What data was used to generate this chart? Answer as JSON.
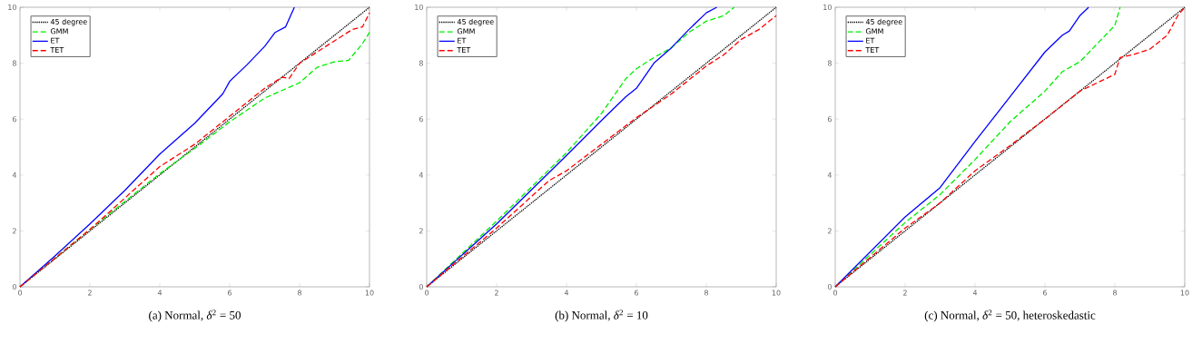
{
  "chart_data": [
    {
      "type": "line",
      "title": "(a) Normal, *δ*$^{2}$ = 50",
      "legend": "top left",
      "xlim": [
        0,
        10
      ],
      "ylim": [
        0,
        10
      ],
      "xticks": [
        0,
        2,
        4,
        6,
        8,
        10
      ],
      "yticks": [
        0,
        2,
        4,
        6,
        8,
        10
      ],
      "series": [
        {
          "name": "45 degree",
          "color": "#000000",
          "line_style": "dotted",
          "x": [
            0,
            10
          ],
          "values": [
            0,
            10
          ]
        },
        {
          "name": "GMM",
          "color": "#00ee00",
          "line_style": "dashed",
          "x": [
            0,
            2,
            4,
            5,
            6,
            7,
            8,
            8.5,
            9,
            9.4,
            9.8,
            10
          ],
          "values": [
            0,
            2.05,
            4.05,
            4.95,
            5.9,
            6.75,
            7.3,
            7.85,
            8.05,
            8.1,
            8.7,
            9.1
          ]
        },
        {
          "name": "ET",
          "color": "#0000ff",
          "line_style": "solid",
          "x": [
            0,
            1,
            2,
            3,
            4,
            5,
            5.8,
            6,
            6.5,
            7,
            7.3,
            7.6,
            7.85
          ],
          "values": [
            0,
            1.1,
            2.25,
            3.45,
            4.75,
            5.85,
            6.9,
            7.35,
            7.95,
            8.6,
            9.1,
            9.3,
            10
          ]
        },
        {
          "name": "TET",
          "color": "#ff0000",
          "line_style": "dashed",
          "x": [
            0,
            2,
            4,
            5,
            6,
            7,
            7.5,
            7.7,
            8,
            9,
            9.5,
            9.8,
            10
          ],
          "values": [
            0,
            2.05,
            4.3,
            5.1,
            6.1,
            7.1,
            7.5,
            7.45,
            8.0,
            8.8,
            9.2,
            9.3,
            9.8
          ]
        }
      ]
    },
    {
      "type": "line",
      "title": "(b) Normal, *δ*$^{2}$ = 10",
      "legend": "top left",
      "xlim": [
        0,
        10
      ],
      "ylim": [
        0,
        10
      ],
      "xticks": [
        0,
        2,
        4,
        6,
        8,
        10
      ],
      "yticks": [
        0,
        2,
        4,
        6,
        8,
        10
      ],
      "series": [
        {
          "name": "45 degree",
          "color": "#000000",
          "line_style": "dotted",
          "x": [
            0,
            10
          ],
          "values": [
            0,
            10
          ]
        },
        {
          "name": "GMM",
          "color": "#00ee00",
          "line_style": "dashed",
          "x": [
            0,
            2,
            4,
            5,
            5.7,
            6,
            6.5,
            7,
            7.5,
            8,
            8.5,
            8.8
          ],
          "values": [
            0,
            2.35,
            4.8,
            6.2,
            7.45,
            7.8,
            8.2,
            8.55,
            9.1,
            9.5,
            9.7,
            10
          ]
        },
        {
          "name": "ET",
          "color": "#0000ff",
          "line_style": "solid",
          "x": [
            0,
            2,
            4,
            5,
            5.7,
            6,
            6.5,
            7,
            7.5,
            8,
            8.3
          ],
          "values": [
            0,
            2.25,
            4.7,
            5.95,
            6.8,
            7.1,
            8.0,
            8.55,
            9.2,
            9.8,
            10
          ]
        },
        {
          "name": "TET",
          "color": "#ff0000",
          "line_style": "dashed",
          "x": [
            0,
            2,
            3.5,
            4,
            6,
            7,
            8,
            8.5,
            9,
            9.5,
            10
          ],
          "values": [
            0,
            2.1,
            3.8,
            4.15,
            6.05,
            6.9,
            7.9,
            8.3,
            8.85,
            9.2,
            9.7
          ]
        }
      ]
    },
    {
      "type": "line",
      "title": "(c) Normal, *δ*$^{2}$ = 50, heteroskedastic",
      "legend": "top left",
      "xlim": [
        0,
        10
      ],
      "ylim": [
        0,
        10
      ],
      "xticks": [
        0,
        2,
        4,
        6,
        8,
        10
      ],
      "yticks": [
        0,
        2,
        4,
        6,
        8,
        10
      ],
      "series": [
        {
          "name": "45 degree",
          "color": "#000000",
          "line_style": "dotted",
          "x": [
            0,
            10
          ],
          "values": [
            0,
            10
          ]
        },
        {
          "name": "GMM",
          "color": "#00ee00",
          "line_style": "dashed",
          "x": [
            0,
            2,
            3,
            4,
            5,
            6,
            6.5,
            7,
            7.5,
            8,
            8.15
          ],
          "values": [
            0,
            2.3,
            3.3,
            4.55,
            5.9,
            7.0,
            7.7,
            8.05,
            8.7,
            9.35,
            10
          ]
        },
        {
          "name": "ET",
          "color": "#0000ff",
          "line_style": "solid",
          "x": [
            0,
            2,
            3,
            4,
            5,
            6,
            6.5,
            6.7,
            7,
            7.25
          ],
          "values": [
            0,
            2.5,
            3.55,
            5.2,
            6.8,
            8.4,
            9.0,
            9.15,
            9.7,
            10
          ]
        },
        {
          "name": "TET",
          "color": "#ff0000",
          "line_style": "dashed",
          "x": [
            0,
            2,
            3,
            4,
            5,
            6,
            7,
            7.5,
            8,
            8.15,
            8.5,
            9,
            9.5,
            9.8,
            10
          ],
          "values": [
            0,
            2.1,
            3.0,
            4.15,
            5.05,
            6.0,
            7.0,
            7.3,
            7.6,
            8.2,
            8.3,
            8.5,
            9.0,
            9.7,
            10
          ]
        }
      ]
    }
  ]
}
